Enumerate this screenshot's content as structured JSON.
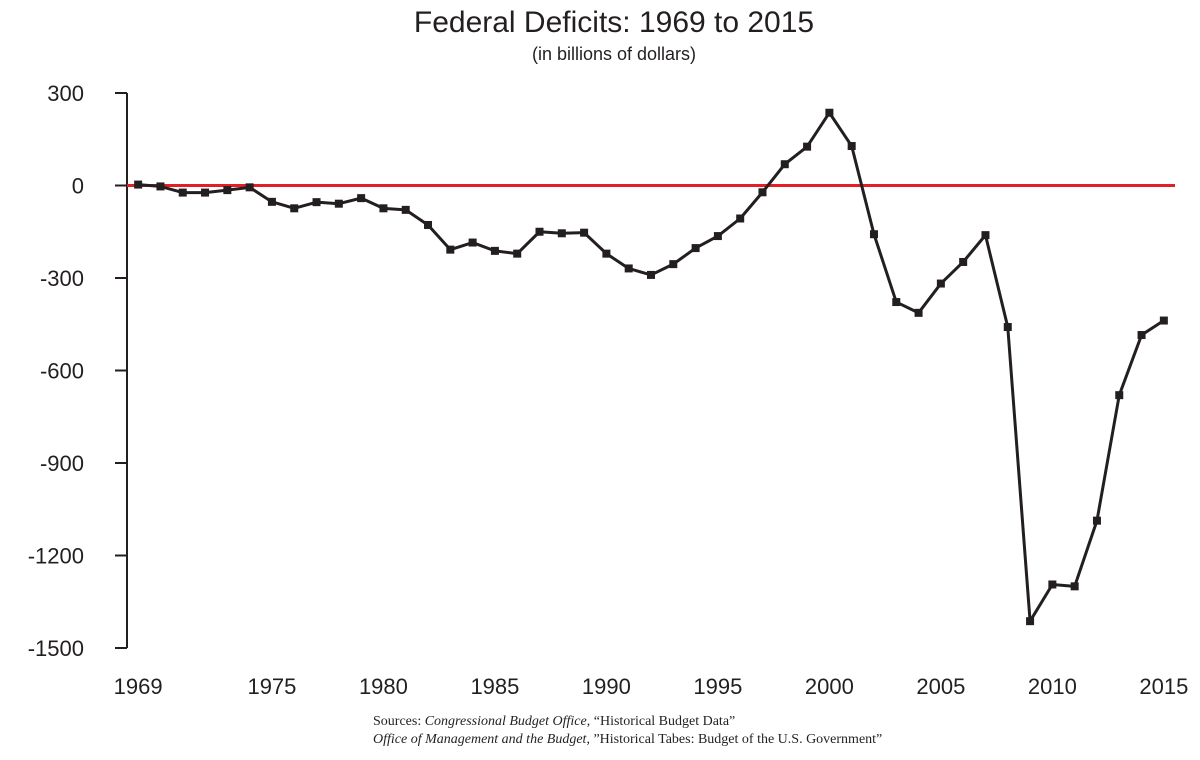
{
  "chart_data": {
    "type": "line",
    "title": "Federal Deficits: 1969 to 2015",
    "subtitle": "(in billions of dollars)",
    "x": [
      1969,
      1970,
      1971,
      1972,
      1973,
      1974,
      1975,
      1976,
      1977,
      1978,
      1979,
      1980,
      1981,
      1982,
      1983,
      1984,
      1985,
      1986,
      1987,
      1988,
      1989,
      1990,
      1991,
      1992,
      1993,
      1994,
      1995,
      1996,
      1997,
      1998,
      1999,
      2000,
      2001,
      2002,
      2003,
      2004,
      2005,
      2006,
      2007,
      2008,
      2009,
      2010,
      2011,
      2012,
      2013,
      2014,
      2015
    ],
    "values": [
      3,
      -3,
      -23,
      -23,
      -15,
      -6,
      -53,
      -74,
      -54,
      -59,
      -41,
      -74,
      -79,
      -128,
      -208,
      -185,
      -212,
      -221,
      -150,
      -155,
      -153,
      -221,
      -269,
      -290,
      -255,
      -203,
      -164,
      -107,
      -22,
      69,
      126,
      236,
      128,
      -158,
      -378,
      -413,
      -318,
      -248,
      -161,
      -459,
      -1413,
      -1294,
      -1300,
      -1087,
      -680,
      -485,
      -438
    ],
    "color": "#231f20",
    "zero_line_color": "#e31e24",
    "xlim": [
      1968.5,
      2015.5
    ],
    "xticks": [
      1969,
      1975,
      1980,
      1985,
      1990,
      1995,
      2000,
      2005,
      2010,
      2015
    ],
    "ylim": [
      -1500,
      300
    ],
    "yticks": [
      300,
      0,
      -300,
      -600,
      -900,
      -1200,
      -1500
    ],
    "sources": [
      {
        "prefix": "Sources: ",
        "italic": "Congressional Budget Office",
        "rest": ", “Historical Budget Data”"
      },
      {
        "prefix": "",
        "italic": "Office of Management and the Budget",
        "rest": ", ”Historical Tabes: Budget of the U.S. Government”"
      }
    ]
  }
}
